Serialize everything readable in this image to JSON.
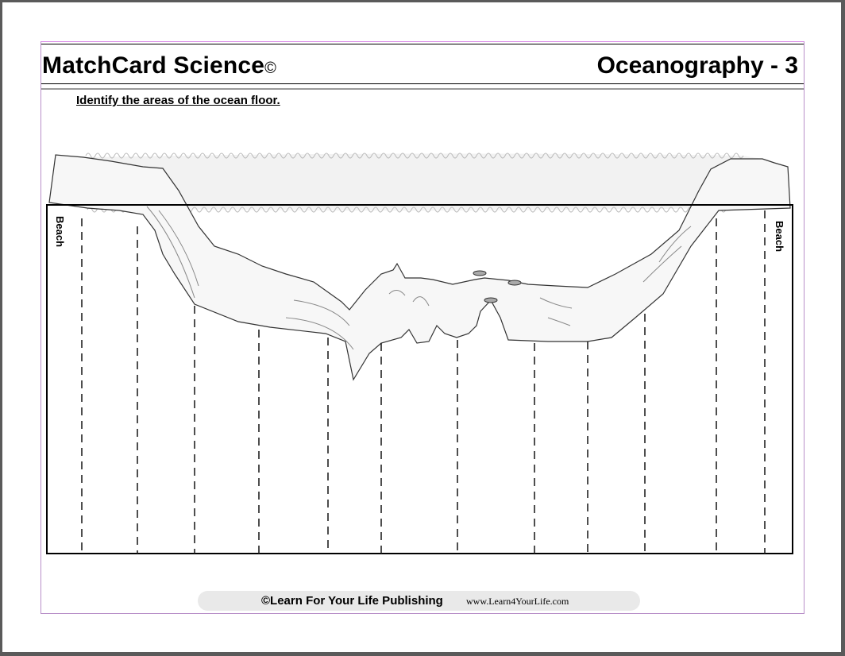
{
  "header": {
    "title": "MatchCard Science",
    "title_mark": "©",
    "subject": "Oceanography - 3"
  },
  "instructions": "Identify the areas of the ocean floor.",
  "diagram": {
    "left_label": "Beach",
    "right_label": "Beach",
    "answer_slots": 12
  },
  "footer": {
    "publisher": "©Learn For Your Life Publishing",
    "website": "www.Learn4YourLife.com"
  },
  "colors": {
    "frame": "#b88fc8",
    "footer_bg": "#e9e9e9",
    "water": "#f2f2f2"
  }
}
